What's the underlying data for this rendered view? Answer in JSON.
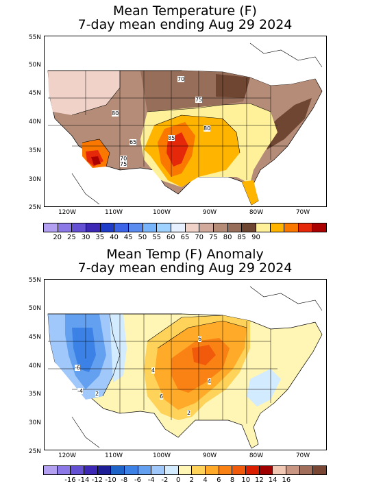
{
  "panel1": {
    "title_line1": "Mean Temperature (F)",
    "title_line2": "7-day mean ending Aug 29 2024",
    "lat_labels": [
      "55N",
      "50N",
      "45N",
      "40N",
      "35N",
      "30N",
      "25N"
    ],
    "lon_labels": [
      "120W",
      "110W",
      "100W",
      "90W",
      "80W",
      "70W"
    ],
    "contour_labels": [
      "70",
      "75",
      "80",
      "80",
      "65",
      "85",
      "70",
      "75"
    ],
    "colorbar": {
      "colors": [
        "#b4a0f0",
        "#8c78e6",
        "#6450d2",
        "#3c28b4",
        "#1e3cc8",
        "#3c64e6",
        "#5a8cf0",
        "#78b4fa",
        "#a0d2ff",
        "#e6f0ff",
        "#f0d2c8",
        "#d2aa9b",
        "#b48c78",
        "#966e5a",
        "#6e4632",
        "#fff09a",
        "#ffb400",
        "#fa7800",
        "#e6280a",
        "#aa0000"
      ],
      "labels": [
        "20",
        "25",
        "30",
        "35",
        "40",
        "45",
        "50",
        "55",
        "60",
        "65",
        "70",
        "75",
        "80",
        "85",
        "90"
      ]
    }
  },
  "panel2": {
    "title_line1": "Mean Temp (F) Anomaly",
    "title_line2": "7-day mean ending Aug 29 2024",
    "lat_labels": [
      "55N",
      "50N",
      "45N",
      "40N",
      "35N",
      "30N",
      "25N"
    ],
    "lon_labels": [
      "120W",
      "110W",
      "100W",
      "90W",
      "80W",
      "70W"
    ],
    "contour_labels": [
      "6",
      "-6",
      "4",
      "4",
      "6",
      "-4",
      "2",
      "2"
    ],
    "colorbar": {
      "colors": [
        "#b4a0f0",
        "#8c78e6",
        "#6450d2",
        "#3c28b4",
        "#1e1e96",
        "#1e64c8",
        "#3c82e6",
        "#64a0f0",
        "#a0c8fa",
        "#d2ebff",
        "#fff5b4",
        "#ffd25a",
        "#ffaa28",
        "#fa8214",
        "#f05a0a",
        "#dc1e00",
        "#a00000",
        "#f0c8b4",
        "#c89682",
        "#a06e5a",
        "#784632"
      ],
      "labels": [
        "-16",
        "-14",
        "-12",
        "-10",
        "-8",
        "-6",
        "-4",
        "-2",
        "0",
        "2",
        "4",
        "6",
        "8",
        "10",
        "12",
        "14",
        "16"
      ]
    }
  }
}
